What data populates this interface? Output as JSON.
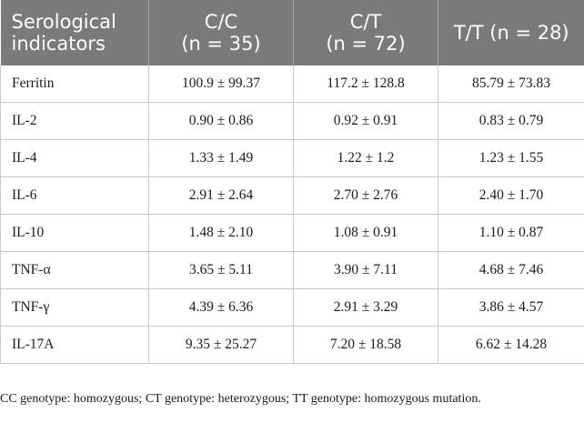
{
  "table": {
    "headers": [
      {
        "line1": "Serological",
        "line2": "indicators"
      },
      {
        "line1": "C/C",
        "line2": "(n = 35)"
      },
      {
        "line1": "C/T",
        "line2": "(n = 72)"
      },
      {
        "line1": "T/T (n = 28)",
        "line2": ""
      }
    ],
    "rows": [
      {
        "indicator": "Ferritin",
        "cc": "100.9 ± 99.37",
        "ct": "117.2 ± 128.8",
        "tt": "85.79 ± 73.83"
      },
      {
        "indicator": "IL-2",
        "cc": "0.90 ± 0.86",
        "ct": "0.92 ± 0.91",
        "tt": "0.83 ± 0.79"
      },
      {
        "indicator": "IL-4",
        "cc": "1.33 ± 1.49",
        "ct": "1.22 ± 1.2",
        "tt": "1.23 ± 1.55"
      },
      {
        "indicator": "IL-6",
        "cc": "2.91 ± 2.64",
        "ct": "2.70 ± 2.76",
        "tt": "2.40 ± 1.70"
      },
      {
        "indicator": "IL-10",
        "cc": "1.48 ± 2.10",
        "ct": "1.08 ± 0.91",
        "tt": "1.10 ± 0.87"
      },
      {
        "indicator": "TNF-α",
        "cc": "3.65 ± 5.11",
        "ct": "3.90 ± 7.11",
        "tt": "4.68 ± 7.46"
      },
      {
        "indicator": "TNF-γ",
        "cc": "4.39 ± 6.36",
        "ct": "2.91 ± 3.29",
        "tt": "3.86 ± 4.57"
      },
      {
        "indicator": "IL-17A",
        "cc": "9.35 ± 25.27",
        "ct": "7.20 ± 18.58",
        "tt": "6.62 ± 14.28"
      }
    ]
  },
  "footnote": "CC genotype: homozygous; CT genotype: heterozygous; TT genotype: homozygous mutation.",
  "colors": {
    "header_bg": "#7a7a7a",
    "header_text": "#ffffff",
    "grid": "#c9c9c9"
  }
}
